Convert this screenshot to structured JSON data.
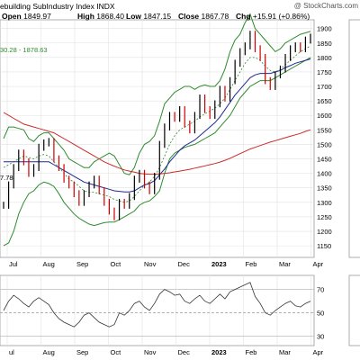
{
  "watermark": "@ StockCharts.com",
  "header": {
    "index_title": "ebuilding SubIndustry Index INDX",
    "open_label": "Open",
    "open_value": "1849.97",
    "high_label": "High",
    "high_value": "1868.40",
    "low_label": "Low",
    "low_value": "1847.15",
    "close_label": "Close",
    "close_value": "1867.78",
    "chg_label": "Chg",
    "chg_value": "+15.91 (+0.86%)",
    "band_readout": "30.28 - 1878.63",
    "prev_readout": "7.78"
  },
  "colors": {
    "price_up": "#000000",
    "price_down": "#cc0000",
    "bollinger": "#2e8b2e",
    "ma_short": "#2e8b2e",
    "ma_mid": "#1f2a8f",
    "ma_long": "#cc2a2a",
    "rsi_line": "#333333",
    "grid": "#e2e2e2"
  },
  "chart_data": [
    {
      "type": "line",
      "panel": "price",
      "x_labels": [
        "Jul",
        "Aug",
        "Sep",
        "Oct",
        "Nov",
        "Dec",
        "2023",
        "Feb",
        "Mar",
        "Apr"
      ],
      "y_ticks": [
        1150,
        1200,
        1250,
        1300,
        1350,
        1400,
        1450,
        1500,
        1550,
        1600,
        1650,
        1700,
        1750,
        1800,
        1850,
        1900
      ],
      "ylim": [
        1110,
        1930
      ],
      "series": [
        {
          "key": "close",
          "values": [
            1290,
            1360,
            1420,
            1470,
            1440,
            1400,
            1420,
            1490,
            1505,
            1510,
            1450,
            1420,
            1380,
            1360,
            1330,
            1300,
            1330,
            1360,
            1380,
            1340,
            1300,
            1270,
            1250,
            1300,
            1290,
            1320,
            1380,
            1400,
            1360,
            1340,
            1390,
            1500,
            1560,
            1600,
            1590,
            1620,
            1570,
            1550,
            1600,
            1660,
            1620,
            1600,
            1640,
            1690,
            1660,
            1720,
            1780,
            1820,
            1840,
            1880,
            1830,
            1800,
            1720,
            1700,
            1740,
            1760,
            1800,
            1830,
            1840,
            1830,
            1860,
            1870
          ]
        },
        {
          "key": "bollinger_upper",
          "values": [
            1520,
            1560,
            1560,
            1555,
            1550,
            1520,
            1510,
            1530,
            1540,
            1540,
            1520,
            1500,
            1480,
            1450,
            1440,
            1430,
            1420,
            1420,
            1440,
            1450,
            1460,
            1470,
            1460,
            1430,
            1400,
            1395,
            1420,
            1470,
            1500,
            1510,
            1530,
            1580,
            1640,
            1660,
            1680,
            1690,
            1700,
            1700,
            1690,
            1700,
            1705,
            1700,
            1700,
            1720,
            1760,
            1820,
            1860,
            1880,
            1920,
            1950,
            1900,
            1880,
            1860,
            1840,
            1820,
            1830,
            1850,
            1860,
            1870,
            1880,
            1885,
            1890
          ]
        },
        {
          "key": "bollinger_lower",
          "values": [
            1150,
            1160,
            1200,
            1260,
            1300,
            1330,
            1340,
            1360,
            1370,
            1365,
            1355,
            1330,
            1300,
            1280,
            1260,
            1245,
            1235,
            1225,
            1220,
            1225,
            1230,
            1232,
            1232,
            1240,
            1250,
            1260,
            1270,
            1290,
            1300,
            1305,
            1320,
            1340,
            1400,
            1450,
            1470,
            1480,
            1490,
            1495,
            1500,
            1510,
            1520,
            1530,
            1540,
            1560,
            1580,
            1600,
            1630,
            1660,
            1680,
            1700,
            1710,
            1720,
            1720,
            1720,
            1730,
            1740,
            1750,
            1760,
            1770,
            1780,
            1790,
            1800
          ]
        },
        {
          "key": "ma_short",
          "values": [
            1420,
            1430,
            1440,
            1450,
            1460,
            1455,
            1450,
            1460,
            1465,
            1460,
            1440,
            1420,
            1400,
            1380,
            1370,
            1355,
            1340,
            1335,
            1335,
            1330,
            1325,
            1320,
            1310,
            1305,
            1300,
            1305,
            1320,
            1340,
            1360,
            1370,
            1390,
            1420,
            1460,
            1500,
            1530,
            1550,
            1560,
            1570,
            1580,
            1595,
            1605,
            1615,
            1625,
            1640,
            1660,
            1690,
            1720,
            1750,
            1780,
            1800,
            1800,
            1790,
            1770,
            1755,
            1750,
            1760,
            1775,
            1790,
            1805,
            1820,
            1830,
            1840
          ]
        },
        {
          "key": "ma_mid",
          "values": [
            1440,
            1440,
            1440,
            1440,
            1440,
            1440,
            1440,
            1440,
            1440,
            1440,
            1430,
            1420,
            1410,
            1400,
            1390,
            1380,
            1370,
            1365,
            1360,
            1355,
            1350,
            1345,
            1340,
            1338,
            1336,
            1336,
            1340,
            1350,
            1360,
            1365,
            1375,
            1395,
            1415,
            1440,
            1460,
            1480,
            1495,
            1505,
            1515,
            1530,
            1545,
            1560,
            1575,
            1595,
            1620,
            1645,
            1670,
            1690,
            1710,
            1730,
            1740,
            1745,
            1745,
            1745,
            1750,
            1755,
            1765,
            1772,
            1780,
            1785,
            1790,
            1795
          ]
        },
        {
          "key": "ma_long",
          "values": [
            1610,
            1600,
            1590,
            1580,
            1570,
            1565,
            1560,
            1555,
            1550,
            1545,
            1540,
            1530,
            1520,
            1510,
            1500,
            1490,
            1480,
            1470,
            1460,
            1450,
            1440,
            1432,
            1425,
            1418,
            1412,
            1408,
            1404,
            1400,
            1398,
            1397,
            1397,
            1398,
            1400,
            1402,
            1405,
            1408,
            1411,
            1414,
            1418,
            1422,
            1426,
            1430,
            1434,
            1439,
            1445,
            1452,
            1460,
            1468,
            1476,
            1484,
            1490,
            1496,
            1502,
            1508,
            1513,
            1518,
            1523,
            1528,
            1533,
            1538,
            1545,
            1550
          ]
        }
      ]
    },
    {
      "type": "line",
      "panel": "rsi",
      "x_labels": [
        "ul",
        "Aug",
        "Sep",
        "Oct",
        "Nov",
        "Dec",
        "2023",
        "Feb",
        "Mar",
        "Apr"
      ],
      "y_ticks": [
        30,
        50,
        70
      ],
      "ylim": [
        22,
        82
      ],
      "reference_lines": [
        30,
        50,
        70
      ],
      "values": [
        52,
        60,
        65,
        62,
        58,
        55,
        60,
        63,
        60,
        57,
        50,
        45,
        42,
        40,
        38,
        42,
        48,
        50,
        46,
        42,
        40,
        38,
        40,
        50,
        48,
        52,
        58,
        60,
        55,
        52,
        58,
        66,
        70,
        68,
        65,
        66,
        60,
        58,
        62,
        65,
        60,
        58,
        62,
        66,
        62,
        68,
        70,
        72,
        74,
        76,
        64,
        58,
        50,
        48,
        52,
        55,
        58,
        60,
        56,
        55,
        58,
        60
      ]
    }
  ]
}
